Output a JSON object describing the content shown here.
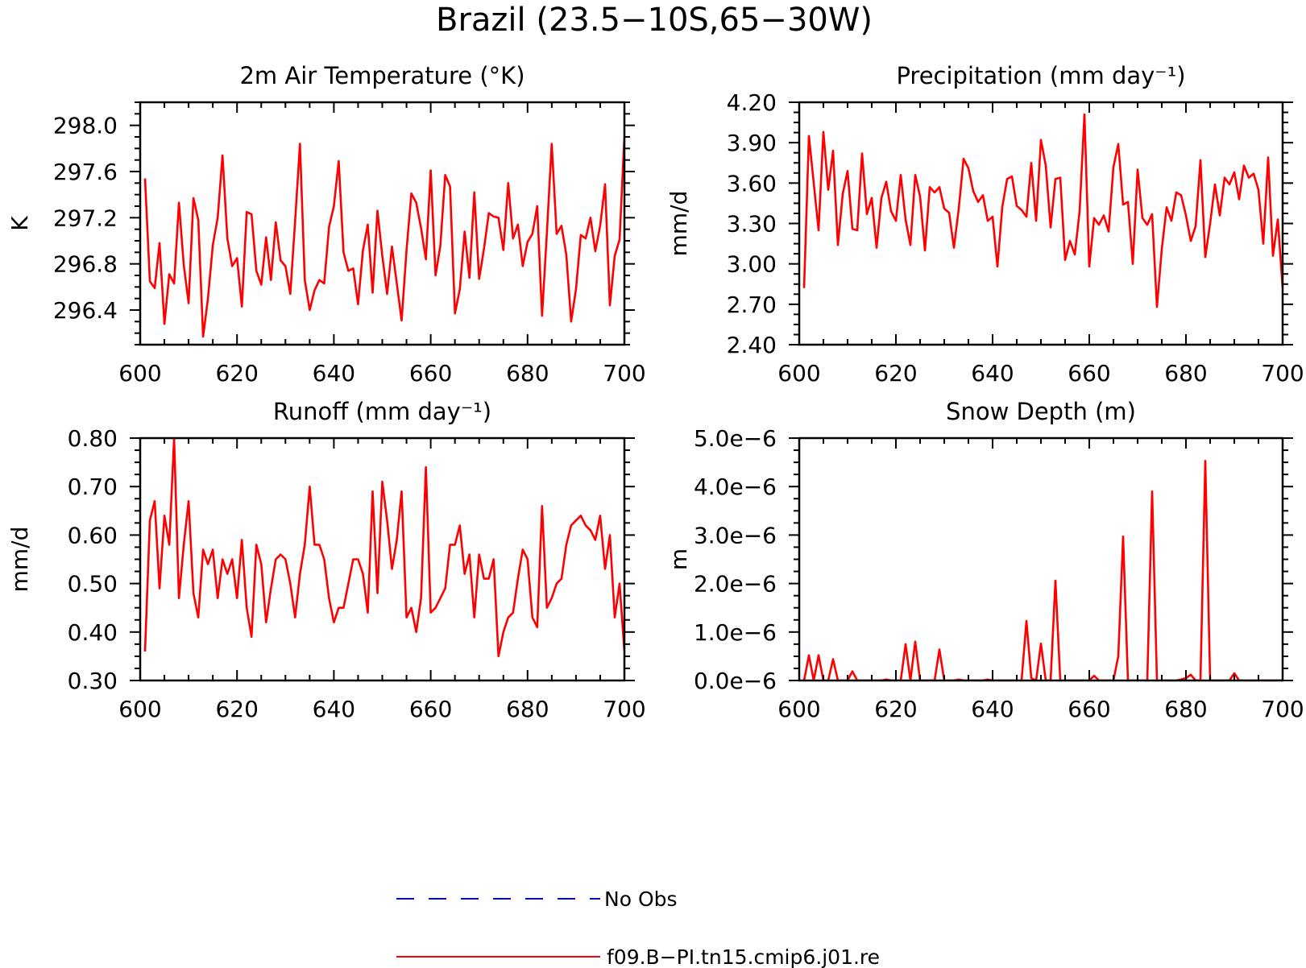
{
  "figure": {
    "title": "Brazil (23.5−10S,65−30W)"
  },
  "colors": {
    "model": "#ff0000",
    "obs": "#0000ff",
    "axis": "#000000"
  },
  "legend": [
    {
      "label": "No Obs",
      "color": "#0000ff",
      "style": "dashed"
    },
    {
      "label": "f09.B−PI.tn15.cmip6.j01.re",
      "color": "#ff0000",
      "style": "solid"
    }
  ],
  "chart_data": [
    {
      "type": "line",
      "title": "2m Air Temperature (°K)",
      "ylabel": "K",
      "xlabel": "",
      "xlim": [
        600,
        700
      ],
      "ylim": [
        296.1,
        298.2
      ],
      "xticks": [
        600,
        620,
        640,
        660,
        680,
        700
      ],
      "yticks": [
        296.4,
        296.8,
        297.2,
        297.6,
        298.0
      ],
      "ytick_labels": [
        "296.4",
        "296.8",
        "297.2",
        "297.6",
        "298.0"
      ],
      "grid": false,
      "x_start": 601,
      "series": [
        {
          "name": "f09.B−PI.tn15.cmip6.j01.re",
          "values": [
            297.54,
            296.65,
            296.59,
            296.98,
            296.28,
            296.71,
            296.63,
            297.33,
            296.79,
            296.46,
            297.37,
            297.18,
            296.17,
            296.5,
            296.96,
            297.2,
            297.74,
            297.02,
            296.78,
            296.85,
            296.43,
            297.25,
            297.23,
            296.74,
            296.62,
            297.03,
            296.66,
            297.16,
            296.83,
            296.78,
            296.54,
            297.17,
            297.84,
            296.66,
            296.4,
            296.57,
            296.66,
            296.63,
            297.12,
            297.3,
            297.69,
            296.9,
            296.74,
            296.76,
            296.45,
            296.92,
            297.14,
            296.55,
            297.26,
            296.87,
            296.54,
            296.95,
            296.63,
            296.31,
            296.92,
            297.41,
            297.33,
            297.11,
            296.84,
            297.61,
            296.7,
            296.96,
            297.57,
            297.47,
            296.37,
            296.58,
            297.08,
            296.68,
            297.42,
            296.67,
            296.93,
            297.24,
            297.21,
            297.2,
            296.92,
            297.5,
            297.02,
            297.14,
            296.78,
            296.99,
            297.06,
            297.3,
            296.35,
            297.07,
            297.84,
            297.06,
            297.13,
            296.88,
            296.3,
            296.58,
            297.05,
            297.02,
            297.2,
            296.91,
            297.13,
            297.49,
            296.44,
            296.87,
            297.01,
            297.9
          ]
        }
      ]
    },
    {
      "type": "line",
      "title": "Precipitation (mm day⁻¹)",
      "ylabel": "mm/d",
      "xlabel": "",
      "xlim": [
        600,
        700
      ],
      "ylim": [
        2.4,
        4.2
      ],
      "xticks": [
        600,
        620,
        640,
        660,
        680,
        700
      ],
      "yticks": [
        2.4,
        2.7,
        3.0,
        3.3,
        3.6,
        3.9,
        4.2
      ],
      "ytick_labels": [
        "2.40",
        "2.70",
        "3.00",
        "3.30",
        "3.60",
        "3.90",
        "4.20"
      ],
      "grid": false,
      "x_start": 601,
      "series": [
        {
          "name": "f09.B−PI.tn15.cmip6.j01.re",
          "values": [
            2.82,
            3.95,
            3.6,
            3.25,
            3.98,
            3.55,
            3.84,
            3.14,
            3.52,
            3.69,
            3.26,
            3.25,
            3.82,
            3.37,
            3.49,
            3.12,
            3.49,
            3.61,
            3.39,
            3.32,
            3.66,
            3.33,
            3.14,
            3.66,
            3.5,
            3.1,
            3.57,
            3.53,
            3.57,
            3.41,
            3.38,
            3.12,
            3.41,
            3.78,
            3.71,
            3.54,
            3.46,
            3.51,
            3.32,
            3.35,
            2.98,
            3.42,
            3.63,
            3.65,
            3.43,
            3.4,
            3.35,
            3.75,
            3.32,
            3.92,
            3.73,
            3.27,
            3.63,
            3.64,
            3.03,
            3.17,
            3.07,
            3.39,
            4.11,
            2.98,
            3.34,
            3.29,
            3.36,
            3.24,
            3.72,
            3.89,
            3.44,
            3.46,
            3.0,
            3.7,
            3.34,
            3.29,
            3.37,
            2.68,
            3.11,
            3.42,
            3.32,
            3.53,
            3.51,
            3.36,
            3.17,
            3.28,
            3.77,
            3.05,
            3.3,
            3.59,
            3.36,
            3.64,
            3.59,
            3.68,
            3.48,
            3.73,
            3.64,
            3.67,
            3.55,
            3.15,
            3.79,
            3.06,
            3.33,
            2.82
          ]
        }
      ]
    },
    {
      "type": "line",
      "title": "Runoff (mm day⁻¹)",
      "ylabel": "mm/d",
      "xlabel": "",
      "xlim": [
        600,
        700
      ],
      "ylim": [
        0.3,
        0.8
      ],
      "xticks": [
        600,
        620,
        640,
        660,
        680,
        700
      ],
      "yticks": [
        0.3,
        0.4,
        0.5,
        0.6,
        0.7,
        0.8
      ],
      "ytick_labels": [
        "0.30",
        "0.40",
        "0.50",
        "0.60",
        "0.70",
        "0.80"
      ],
      "grid": false,
      "x_start": 601,
      "series": [
        {
          "name": "f09.B−PI.tn15.cmip6.j01.re",
          "values": [
            0.36,
            0.63,
            0.67,
            0.49,
            0.64,
            0.58,
            0.8,
            0.47,
            0.58,
            0.67,
            0.48,
            0.43,
            0.57,
            0.54,
            0.57,
            0.47,
            0.55,
            0.52,
            0.55,
            0.47,
            0.59,
            0.45,
            0.39,
            0.58,
            0.54,
            0.42,
            0.49,
            0.55,
            0.56,
            0.55,
            0.5,
            0.43,
            0.52,
            0.58,
            0.7,
            0.58,
            0.58,
            0.55,
            0.47,
            0.42,
            0.45,
            0.45,
            0.5,
            0.55,
            0.55,
            0.52,
            0.44,
            0.69,
            0.48,
            0.71,
            0.63,
            0.53,
            0.59,
            0.69,
            0.43,
            0.45,
            0.4,
            0.47,
            0.74,
            0.44,
            0.45,
            0.47,
            0.49,
            0.58,
            0.58,
            0.62,
            0.52,
            0.56,
            0.43,
            0.56,
            0.51,
            0.51,
            0.55,
            0.35,
            0.4,
            0.43,
            0.44,
            0.51,
            0.57,
            0.55,
            0.43,
            0.41,
            0.66,
            0.45,
            0.47,
            0.5,
            0.51,
            0.58,
            0.62,
            0.63,
            0.64,
            0.62,
            0.61,
            0.59,
            0.64,
            0.53,
            0.6,
            0.43,
            0.5,
            0.36
          ]
        }
      ]
    },
    {
      "type": "line",
      "title": "Snow Depth (m)",
      "ylabel": "m",
      "xlabel": "",
      "xlim": [
        600,
        700
      ],
      "ylim": [
        0,
        5e-06
      ],
      "xticks": [
        600,
        620,
        640,
        660,
        680,
        700
      ],
      "yticks": [
        0,
        1e-06,
        2e-06,
        3e-06,
        4e-06,
        5e-06
      ],
      "ytick_labels": [
        "0.0e−6",
        "1.0e−6",
        "2.0e−6",
        "3.0e−6",
        "4.0e−6",
        "5.0e−6"
      ],
      "grid": false,
      "x_start": 601,
      "series": [
        {
          "name": "f09.B−PI.tn15.cmip6.j01.re",
          "values": [
            0,
            5.2e-07,
            0,
            5.2e-07,
            0,
            0,
            4.4e-07,
            0,
            0,
            0,
            1.9e-07,
            0,
            0,
            0,
            0,
            0,
            0,
            2e-08,
            0,
            0,
            0,
            7.5e-07,
            0,
            8e-07,
            0,
            0,
            0,
            0,
            6.4e-07,
            0,
            0,
            0,
            2e-08,
            0,
            0,
            0,
            0,
            0,
            2e-08,
            0,
            0,
            0,
            0,
            0,
            0,
            0,
            1.23e-06,
            5e-08,
            0,
            7.6e-07,
            0,
            0,
            2.06e-06,
            0,
            0,
            0,
            0,
            0,
            0,
            0,
            1e-07,
            0,
            0,
            0,
            0,
            5e-07,
            2.97e-06,
            0,
            0,
            0,
            0,
            0,
            3.9e-06,
            0,
            0,
            0,
            0,
            0,
            2e-08,
            5e-08,
            1.2e-07,
            0,
            0,
            4.53e-06,
            0,
            0,
            0,
            0,
            0,
            1.5e-07,
            0,
            0,
            0,
            0,
            0,
            0,
            0,
            0,
            0,
            0
          ]
        }
      ]
    }
  ]
}
